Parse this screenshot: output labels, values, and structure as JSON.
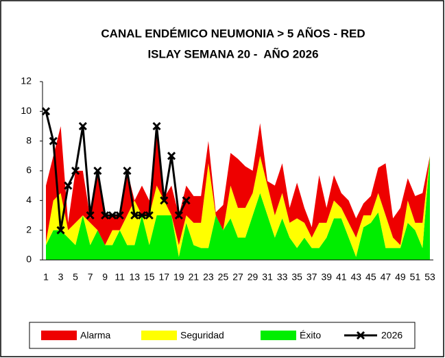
{
  "chart_data": {
    "type": "area",
    "title": [
      "CANAL ENDÉMICO NEUMONIA > 5 AÑOS - RED",
      "ISLAY SEMANA 20 -  AÑO 2026"
    ],
    "categories": [
      1,
      null,
      3,
      null,
      5,
      null,
      7,
      null,
      9,
      null,
      11,
      null,
      13,
      null,
      15,
      null,
      17,
      null,
      19,
      null,
      21,
      null,
      23,
      null,
      25,
      null,
      27,
      null,
      29,
      null,
      31,
      null,
      33,
      null,
      35,
      null,
      37,
      null,
      39,
      null,
      41,
      null,
      43,
      null,
      45,
      null,
      47,
      null,
      49,
      null,
      51,
      null,
      53
    ],
    "ylim": [
      0,
      12
    ],
    "yticks": [
      0,
      2,
      4,
      6,
      8,
      10,
      12
    ],
    "grid": false,
    "legend": "bottom",
    "series": [
      {
        "name": "Alarma",
        "type": "area",
        "color": "#ee0000",
        "values": [
          3.8,
          3,
          4.5,
          0.5,
          3.5,
          3,
          0.3,
          4,
          2,
          1,
          1,
          3,
          0,
          2,
          1,
          4,
          0.2,
          2,
          2,
          2,
          1.8,
          1.8,
          1.5,
          0.2,
          1.7,
          2.2,
          3.3,
          2.8,
          1.5,
          2.2,
          0.3,
          2,
          2,
          1,
          2.4,
          1,
          0.7,
          3.2,
          1,
          1.7,
          1,
          1.5,
          1.3,
          0.8,
          1.3,
          1.7,
          3.5,
          1.3,
          2.5,
          1.5,
          1.8,
          2,
          0
        ]
      },
      {
        "name": "Seguridad",
        "type": "area",
        "color": "#ffff00",
        "values": [
          0.2,
          2,
          2.5,
          0.5,
          1.5,
          0,
          1.5,
          0,
          0,
          1,
          0,
          2,
          3,
          0,
          2,
          2,
          1,
          0,
          0.8,
          0.5,
          1.5,
          1.7,
          5.7,
          0,
          0,
          2.2,
          2,
          2,
          1.5,
          2.5,
          2,
          1.5,
          1.7,
          1,
          2,
          1,
          0.7,
          1.7,
          1,
          1.2,
          0.7,
          1,
          1.3,
          0.8,
          0.5,
          1.3,
          2.2,
          0.7,
          0.2,
          1.5,
          0.5,
          1.7,
          0
        ]
      },
      {
        "name": "Éxito",
        "type": "area",
        "color": "#00ee00",
        "values": [
          1,
          2,
          2,
          1.5,
          1,
          3,
          1,
          2,
          1,
          1,
          2,
          1,
          1,
          3,
          1,
          3,
          3,
          3,
          0.2,
          2.5,
          1,
          0.8,
          0.8,
          3,
          2,
          2.8,
          1.5,
          1.5,
          3,
          4.5,
          3,
          1.5,
          2.8,
          1.5,
          0.8,
          1.5,
          0.8,
          0.8,
          1.5,
          2.8,
          2.8,
          1.5,
          0.2,
          2.2,
          2.5,
          3.2,
          0.8,
          0.8,
          0.8,
          2.5,
          2,
          0.8,
          7
        ]
      },
      {
        "name": "2026",
        "type": "line",
        "color": "#000000",
        "values": [
          10,
          8,
          2,
          5,
          6,
          9,
          3,
          6,
          3,
          3,
          3,
          6,
          3,
          3,
          3,
          9,
          4,
          7,
          3,
          4,
          null,
          null,
          null,
          null,
          null,
          null,
          null,
          null,
          null,
          null,
          null,
          null,
          null,
          null,
          null,
          null,
          null,
          null,
          null,
          null,
          null,
          null,
          null,
          null,
          null,
          null,
          null,
          null,
          null,
          null,
          null,
          null,
          null
        ]
      }
    ]
  }
}
